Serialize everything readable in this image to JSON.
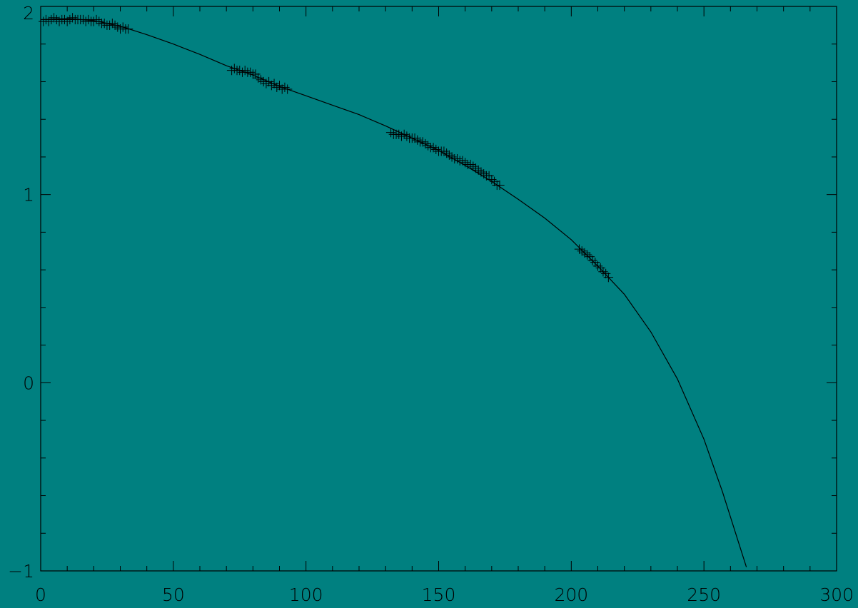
{
  "chart_data": {
    "type": "scatter",
    "title": "",
    "xlabel": "",
    "ylabel": "",
    "xlim": [
      0,
      300
    ],
    "ylim": [
      -1,
      2
    ],
    "x_ticks": [
      "0",
      "50",
      "100",
      "150",
      "200",
      "250",
      "300"
    ],
    "x_tick_values": [
      0,
      50,
      100,
      150,
      200,
      250,
      300
    ],
    "y_ticks": [
      "2",
      "1",
      "0",
      "−1"
    ],
    "y_tick_values": [
      2,
      1,
      0,
      -1
    ],
    "x_minor_step": 10,
    "y_minor_step": 0.2,
    "grid": false,
    "colors": {
      "background": "#008080",
      "foreground": "#000000",
      "tick_label": "#000000"
    },
    "series": [
      {
        "type": "scatter",
        "marker": "plus-with-error-bar",
        "error": 0.025,
        "points": [
          [
            1,
            1.92
          ],
          [
            2,
            1.93
          ],
          [
            3,
            1.92
          ],
          [
            4,
            1.93
          ],
          [
            5,
            1.94
          ],
          [
            6,
            1.93
          ],
          [
            7,
            1.92
          ],
          [
            8,
            1.93
          ],
          [
            9,
            1.93
          ],
          [
            10,
            1.92
          ],
          [
            11,
            1.93
          ],
          [
            12,
            1.94
          ],
          [
            13,
            1.93
          ],
          [
            14,
            1.93
          ],
          [
            15,
            1.93
          ],
          [
            16,
            1.93
          ],
          [
            17,
            1.92
          ],
          [
            18,
            1.93
          ],
          [
            19,
            1.92
          ],
          [
            20,
            1.92
          ],
          [
            21,
            1.93
          ],
          [
            22,
            1.92
          ],
          [
            23,
            1.91
          ],
          [
            24,
            1.91
          ],
          [
            25,
            1.9
          ],
          [
            26,
            1.9
          ],
          [
            27,
            1.91
          ],
          [
            28,
            1.9
          ],
          [
            29,
            1.89
          ],
          [
            30,
            1.88
          ],
          [
            31,
            1.89
          ],
          [
            32,
            1.88
          ],
          [
            33,
            1.88
          ],
          [
            72,
            1.66
          ],
          [
            73,
            1.67
          ],
          [
            74,
            1.66
          ],
          [
            75,
            1.66
          ],
          [
            76,
            1.65
          ],
          [
            77,
            1.66
          ],
          [
            78,
            1.65
          ],
          [
            79,
            1.65
          ],
          [
            80,
            1.64
          ],
          [
            81,
            1.64
          ],
          [
            82,
            1.62
          ],
          [
            83,
            1.61
          ],
          [
            84,
            1.6
          ],
          [
            85,
            1.59
          ],
          [
            86,
            1.6
          ],
          [
            87,
            1.58
          ],
          [
            88,
            1.59
          ],
          [
            89,
            1.57
          ],
          [
            90,
            1.58
          ],
          [
            91,
            1.56
          ],
          [
            92,
            1.57
          ],
          [
            93,
            1.56
          ],
          [
            132,
            1.33
          ],
          [
            133,
            1.32
          ],
          [
            134,
            1.32
          ],
          [
            135,
            1.32
          ],
          [
            136,
            1.31
          ],
          [
            137,
            1.32
          ],
          [
            138,
            1.31
          ],
          [
            139,
            1.3
          ],
          [
            140,
            1.3
          ],
          [
            141,
            1.3
          ],
          [
            142,
            1.29
          ],
          [
            143,
            1.28
          ],
          [
            144,
            1.28
          ],
          [
            145,
            1.27
          ],
          [
            146,
            1.26
          ],
          [
            147,
            1.25
          ],
          [
            148,
            1.25
          ],
          [
            149,
            1.24
          ],
          [
            150,
            1.23
          ],
          [
            151,
            1.23
          ],
          [
            152,
            1.23
          ],
          [
            153,
            1.22
          ],
          [
            154,
            1.21
          ],
          [
            155,
            1.2
          ],
          [
            156,
            1.19
          ],
          [
            157,
            1.19
          ],
          [
            158,
            1.18
          ],
          [
            159,
            1.18
          ],
          [
            160,
            1.17
          ],
          [
            161,
            1.16
          ],
          [
            162,
            1.16
          ],
          [
            163,
            1.15
          ],
          [
            164,
            1.14
          ],
          [
            165,
            1.13
          ],
          [
            166,
            1.12
          ],
          [
            167,
            1.11
          ],
          [
            168,
            1.1
          ],
          [
            169,
            1.1
          ],
          [
            170,
            1.08
          ],
          [
            171,
            1.07
          ],
          [
            172,
            1.05
          ],
          [
            173,
            1.05
          ],
          [
            203,
            0.71
          ],
          [
            204,
            0.7
          ],
          [
            205,
            0.69
          ],
          [
            206,
            0.68
          ],
          [
            207,
            0.67
          ],
          [
            208,
            0.65
          ],
          [
            209,
            0.64
          ],
          [
            210,
            0.62
          ],
          [
            211,
            0.61
          ],
          [
            212,
            0.59
          ],
          [
            213,
            0.58
          ],
          [
            214,
            0.56
          ]
        ]
      },
      {
        "type": "line",
        "points": [
          [
            0,
            1.93
          ],
          [
            10,
            1.935
          ],
          [
            20,
            1.925
          ],
          [
            30,
            1.895
          ],
          [
            40,
            1.85
          ],
          [
            50,
            1.8
          ],
          [
            60,
            1.745
          ],
          [
            70,
            1.685
          ],
          [
            80,
            1.635
          ],
          [
            90,
            1.575
          ],
          [
            100,
            1.525
          ],
          [
            110,
            1.475
          ],
          [
            120,
            1.425
          ],
          [
            130,
            1.365
          ],
          [
            140,
            1.3
          ],
          [
            150,
            1.235
          ],
          [
            160,
            1.155
          ],
          [
            170,
            1.07
          ],
          [
            180,
            0.975
          ],
          [
            190,
            0.875
          ],
          [
            200,
            0.76
          ],
          [
            210,
            0.62
          ],
          [
            220,
            0.47
          ],
          [
            230,
            0.27
          ],
          [
            240,
            0.02
          ],
          [
            250,
            -0.3
          ],
          [
            257,
            -0.58
          ],
          [
            266,
            -0.98
          ]
        ]
      }
    ]
  }
}
